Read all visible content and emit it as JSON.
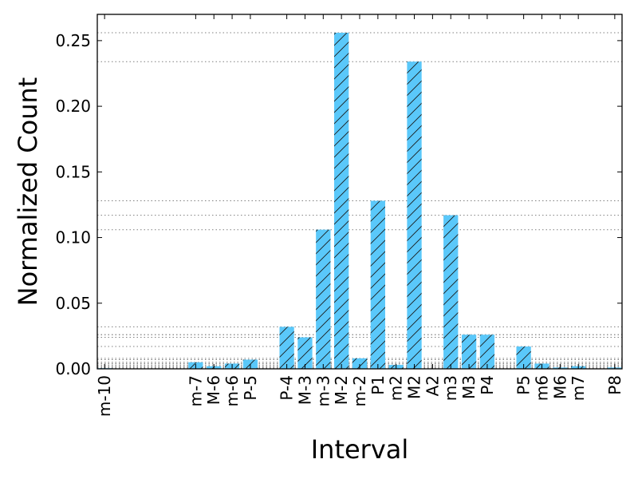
{
  "chart_data": {
    "type": "bar",
    "title": "",
    "xlabel": "Interval",
    "ylabel": "Normalized Count",
    "ylim": [
      0,
      0.27
    ],
    "yticks": [
      "0.00",
      "0.05",
      "0.10",
      "0.15",
      "0.20",
      "0.25"
    ],
    "bar_color": "#5ac8fa",
    "hatch": "diagonal",
    "grid": "horizontal dotted lines at bar heights",
    "categories": [
      "m-10",
      "m-7",
      "M-6",
      "m-6",
      "P-5",
      "P-4",
      "M-3",
      "m-3",
      "M-2",
      "m-2",
      "P1",
      "m2",
      "M2",
      "A2",
      "m3",
      "M3",
      "P4",
      "P5",
      "m6",
      "M6",
      "m7",
      "P8"
    ],
    "positions": [
      -15,
      -10,
      -9,
      -8,
      -7,
      -5,
      -4,
      -3,
      -2,
      -1,
      0,
      1,
      2,
      3,
      4,
      5,
      6,
      8,
      9,
      10,
      11,
      13
    ],
    "values": [
      0.0005,
      0.005,
      0.002,
      0.004,
      0.007,
      0.032,
      0.024,
      0.106,
      0.256,
      0.008,
      0.128,
      0.003,
      0.234,
      0.0,
      0.117,
      0.026,
      0.026,
      0.017,
      0.004,
      0.001,
      0.002,
      0.001
    ]
  }
}
